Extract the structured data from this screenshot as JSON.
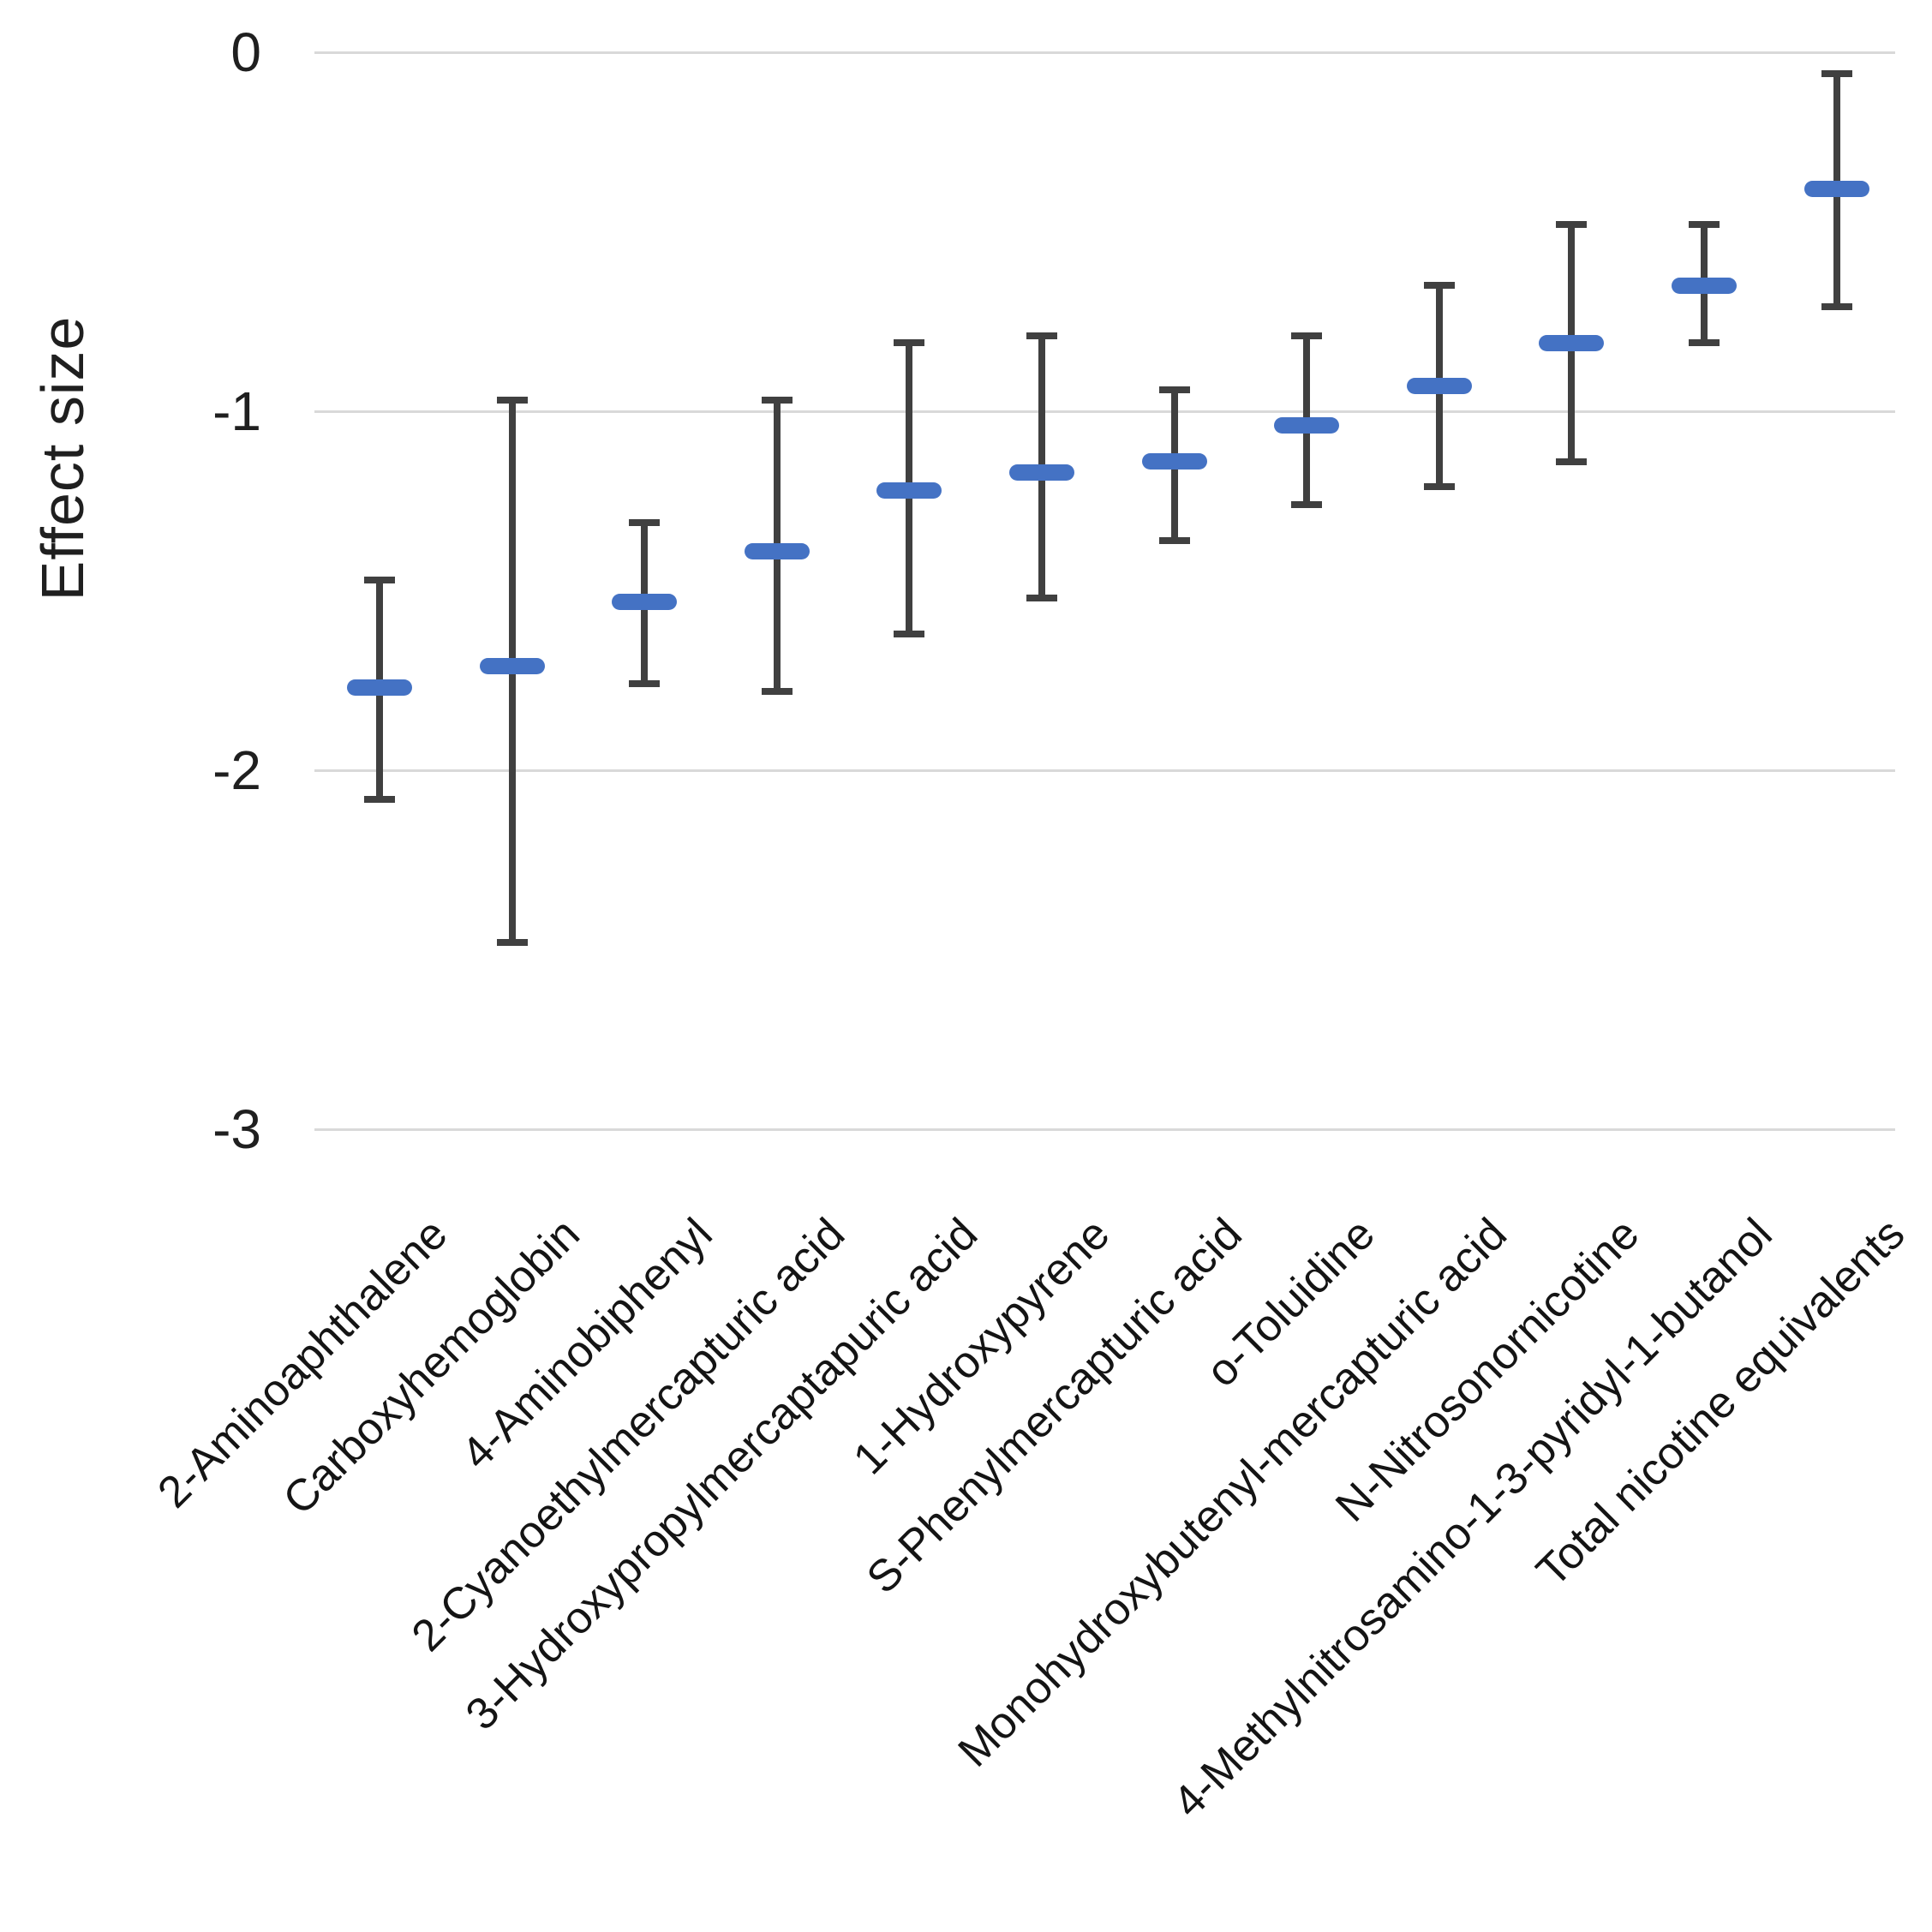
{
  "chart_data": {
    "type": "errorbar",
    "title": "",
    "xlabel": "",
    "ylabel": "Effect size",
    "ylim": [
      -3,
      0
    ],
    "grid": "horizontal",
    "legend": "none",
    "colors": {
      "marker": "#4472C4",
      "whisker": "#404040",
      "gridline": "#D9D9D9"
    },
    "yticks": [
      {
        "label": "0",
        "value": 0
      },
      {
        "label": "-1",
        "value": -1
      },
      {
        "label": "-2",
        "value": -2
      },
      {
        "label": "-3",
        "value": -3
      }
    ],
    "categories": [
      "2-Aminoaphthalene",
      "Carboxyhemoglobin",
      "4-Aminobiphenyl",
      "2-Cyanoethylmercapturic acid",
      "3-Hydroxypropylmercaptapuric acid",
      "1-Hydroxypyrene",
      "S-Phenylmercapturic acid",
      "o-Toluidine",
      "Monohydroxybutenyl-mercapturic acid",
      "N-Nitrosonornicotine",
      "4-Methylnitrosamino-1-3-pyridyl-1-butanol",
      "Total nicotine equivalents"
    ],
    "series": [
      {
        "name": "Effect size",
        "points": [
          {
            "category": "2-Aminoaphthalene",
            "value": -1.77,
            "upper": -1.47,
            "lower": -2.08
          },
          {
            "category": "Carboxyhemoglobin",
            "value": -1.71,
            "upper": -0.97,
            "lower": -2.48
          },
          {
            "category": "4-Aminobiphenyl",
            "value": -1.53,
            "upper": -1.31,
            "lower": -1.76
          },
          {
            "category": "2-Cyanoethylmercapturic acid",
            "value": -1.39,
            "upper": -0.97,
            "lower": -1.78
          },
          {
            "category": "3-Hydroxypropylmercaptapuric acid",
            "value": -1.22,
            "upper": -0.81,
            "lower": -1.62
          },
          {
            "category": "1-Hydroxypyrene",
            "value": -1.17,
            "upper": -0.79,
            "lower": -1.52
          },
          {
            "category": "S-Phenylmercapturic acid",
            "value": -1.14,
            "upper": -0.94,
            "lower": -1.36
          },
          {
            "category": "o-Toluidine",
            "value": -1.04,
            "upper": -0.79,
            "lower": -1.26
          },
          {
            "category": "Monohydroxybutenyl-mercapturic acid",
            "value": -0.93,
            "upper": -0.65,
            "lower": -1.21
          },
          {
            "category": "N-Nitrosonornicotine",
            "value": -0.81,
            "upper": -0.48,
            "lower": -1.14
          },
          {
            "category": "4-Methylnitrosamino-1-3-pyridyl-1-butanol",
            "value": -0.65,
            "upper": -0.48,
            "lower": -0.81
          },
          {
            "category": "Total nicotine equivalents",
            "value": -0.38,
            "upper": -0.06,
            "lower": -0.71
          }
        ]
      }
    ]
  }
}
